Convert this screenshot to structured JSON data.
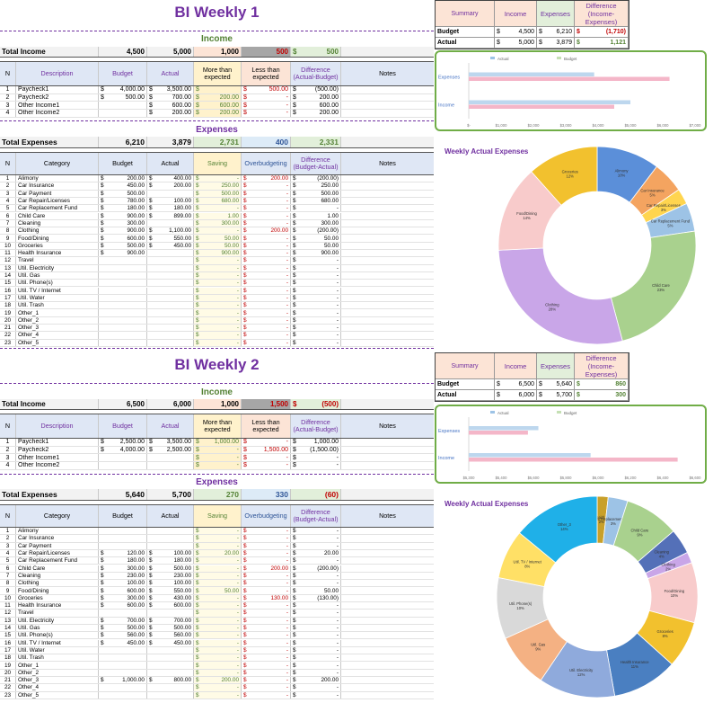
{
  "colors": {
    "purple": "#7030a0",
    "green": "#548235",
    "red": "#c00000",
    "blue": "#2f5597"
  },
  "w1": {
    "title": "BI Weekly 1",
    "income_band": "Income",
    "income_total": {
      "label": "Total Income",
      "budget": "4,500",
      "actual": "5,000",
      "more": "1,000",
      "less": "500",
      "diff_cur": "$",
      "diff": "500"
    },
    "income_headers": [
      "N",
      "Description",
      "Budget",
      "Actual",
      "More than expected",
      "Less than expected",
      "Difference (Actual-Budget)",
      "Notes"
    ],
    "income_rows": [
      {
        "n": "1",
        "desc": "Paycheck1",
        "budget": "4,000.00",
        "actual": "3,500.00",
        "more": "",
        "less": "500.00",
        "diff": "(500.00)"
      },
      {
        "n": "2",
        "desc": "Paycheck2",
        "budget": "500.00",
        "actual": "700.00",
        "more": "200.00",
        "less": "-",
        "diff": "200.00"
      },
      {
        "n": "3",
        "desc": "Other Income1",
        "budget": "",
        "actual": "600.00",
        "more": "600.00",
        "less": "-",
        "diff": "600.00"
      },
      {
        "n": "4",
        "desc": "Other Income2",
        "budget": "",
        "actual": "200.00",
        "more": "200.00",
        "less": "-",
        "diff": "200.00"
      }
    ],
    "exp_band": "Expenses",
    "exp_total": {
      "label": "Total Expenses",
      "budget": "6,210",
      "actual": "3,879",
      "saving": "2,731",
      "over": "400",
      "diff": "2,331"
    },
    "exp_headers": [
      "N",
      "Category",
      "Budget",
      "Actual",
      "Saving",
      "Overbudgeting",
      "Difference (Budget-Actual)",
      "Notes"
    ],
    "exp_rows": [
      {
        "n": "1",
        "cat": "Alimony",
        "budget": "200.00",
        "actual": "400.00",
        "saving": "-",
        "over": "200.00",
        "diff": "(200.00)"
      },
      {
        "n": "2",
        "cat": "Car Insurance",
        "budget": "450.00",
        "actual": "200.00",
        "saving": "250.00",
        "over": "-",
        "diff": "250.00"
      },
      {
        "n": "3",
        "cat": "Car Payment",
        "budget": "500.00",
        "actual": "",
        "saving": "500.00",
        "over": "-",
        "diff": "500.00"
      },
      {
        "n": "4",
        "cat": "Car Repair/Licenses",
        "budget": "780.00",
        "actual": "100.00",
        "saving": "680.00",
        "over": "-",
        "diff": "680.00"
      },
      {
        "n": "5",
        "cat": "Car Replacement Fund",
        "budget": "180.00",
        "actual": "180.00",
        "saving": "-",
        "over": "-",
        "diff": "-"
      },
      {
        "n": "6",
        "cat": "Child Care",
        "budget": "900.00",
        "actual": "899.00",
        "saving": "1.00",
        "over": "-",
        "diff": "1.00"
      },
      {
        "n": "7",
        "cat": "Cleaning",
        "budget": "300.00",
        "actual": "",
        "saving": "300.00",
        "over": "-",
        "diff": "300.00"
      },
      {
        "n": "8",
        "cat": "Clothing",
        "budget": "900.00",
        "actual": "1,100.00",
        "saving": "-",
        "over": "200.00",
        "diff": "(200.00)"
      },
      {
        "n": "9",
        "cat": "Food/Dining",
        "budget": "600.00",
        "actual": "550.00",
        "saving": "50.00",
        "over": "-",
        "diff": "50.00"
      },
      {
        "n": "10",
        "cat": "Groceries",
        "budget": "500.00",
        "actual": "450.00",
        "saving": "50.00",
        "over": "-",
        "diff": "50.00"
      },
      {
        "n": "11",
        "cat": "Health Insurance",
        "budget": "900.00",
        "actual": "",
        "saving": "900.00",
        "over": "-",
        "diff": "900.00"
      },
      {
        "n": "12",
        "cat": "Travel",
        "budget": "",
        "actual": "",
        "saving": "-",
        "over": "-",
        "diff": "-"
      },
      {
        "n": "13",
        "cat": "Util. Electricity",
        "budget": "",
        "actual": "",
        "saving": "-",
        "over": "-",
        "diff": "-"
      },
      {
        "n": "14",
        "cat": "Util. Gas",
        "budget": "",
        "actual": "",
        "saving": "-",
        "over": "-",
        "diff": "-"
      },
      {
        "n": "15",
        "cat": "Util. Phone(s)",
        "budget": "",
        "actual": "",
        "saving": "-",
        "over": "-",
        "diff": "-"
      },
      {
        "n": "16",
        "cat": "Util. TV / Internet",
        "budget": "",
        "actual": "",
        "saving": "-",
        "over": "-",
        "diff": "-"
      },
      {
        "n": "17",
        "cat": "Util. Water",
        "budget": "",
        "actual": "",
        "saving": "-",
        "over": "-",
        "diff": "-"
      },
      {
        "n": "18",
        "cat": "Util. Trash",
        "budget": "",
        "actual": "",
        "saving": "-",
        "over": "-",
        "diff": "-"
      },
      {
        "n": "19",
        "cat": "Other_1",
        "budget": "",
        "actual": "",
        "saving": "-",
        "over": "-",
        "diff": "-"
      },
      {
        "n": "20",
        "cat": "Other_2",
        "budget": "",
        "actual": "",
        "saving": "-",
        "over": "-",
        "diff": "-"
      },
      {
        "n": "21",
        "cat": "Other_3",
        "budget": "",
        "actual": "",
        "saving": "-",
        "over": "-",
        "diff": "-"
      },
      {
        "n": "22",
        "cat": "Other_4",
        "budget": "",
        "actual": "",
        "saving": "-",
        "over": "-",
        "diff": "-"
      },
      {
        "n": "23",
        "cat": "Other_5",
        "budget": "",
        "actual": "",
        "saving": "-",
        "over": "-",
        "diff": "-"
      }
    ],
    "summary": {
      "headers": [
        "Summary",
        "Income",
        "Expenses",
        "Difference (Income-Expenses)"
      ],
      "rows": [
        {
          "label": "Budget",
          "income": "4,500",
          "expenses": "6,210",
          "diff": "(1,710)",
          "neg": true
        },
        {
          "label": "Actual",
          "income": "5,000",
          "expenses": "3,879",
          "diff": "1,121",
          "neg": false
        }
      ]
    },
    "bar_chart": {
      "type": "bar",
      "legend": [
        "Actual",
        "Budget"
      ],
      "categories": [
        "Expenses",
        "Income"
      ],
      "series": [
        {
          "name": "Actual",
          "values": [
            3879,
            5000
          ]
        },
        {
          "name": "Budget",
          "values": [
            6210,
            4500
          ]
        }
      ],
      "xticks": [
        "$-",
        "$1,000",
        "$2,000",
        "$3,000",
        "$4,000",
        "$5,000",
        "$6,000",
        "$7,000"
      ],
      "xlim": [
        0,
        7000
      ]
    },
    "donut": {
      "type": "pie",
      "title": "Weekly Actual Expenses",
      "slices": [
        {
          "label": "Alimony",
          "pct": "10%",
          "value": 400,
          "color": "#5b8fd9"
        },
        {
          "label": "Car Insurance",
          "pct": "5%",
          "value": 200,
          "color": "#f4a460"
        },
        {
          "label": "Car Repair/Licenses",
          "pct": "3%",
          "value": 100,
          "color": "#ffd54f"
        },
        {
          "label": "Car Replacement Fund",
          "pct": "5%",
          "value": 180,
          "color": "#9dc3e6"
        },
        {
          "label": "Child Care",
          "pct": "23%",
          "value": 899,
          "color": "#a9d18e"
        },
        {
          "label": "Clothing",
          "pct": "28%",
          "value": 1100,
          "color": "#c9a6e8"
        },
        {
          "label": "Food/Dining",
          "pct": "14%",
          "value": 550,
          "color": "#f8cbcb"
        },
        {
          "label": "Groceries",
          "pct": "12%",
          "value": 450,
          "color": "#f2c12e"
        }
      ]
    }
  },
  "w2": {
    "title": "BI Weekly 2",
    "income_band": "Income",
    "income_total": {
      "label": "Total Income",
      "budget": "6,500",
      "actual": "6,000",
      "more": "1,000",
      "less": "1,500",
      "diff_cur": "$",
      "diff": "(500)"
    },
    "income_headers": [
      "N",
      "Description",
      "Budget",
      "Actual",
      "More than expected",
      "Less than expected",
      "Difference (Actual-Budget)",
      "Notes"
    ],
    "income_rows": [
      {
        "n": "1",
        "desc": "Paycheck1",
        "budget": "2,500.00",
        "actual": "3,500.00",
        "more": "1,000.00",
        "less": "-",
        "diff": "1,000.00"
      },
      {
        "n": "2",
        "desc": "Paycheck2",
        "budget": "4,000.00",
        "actual": "2,500.00",
        "more": "-",
        "less": "1,500.00",
        "diff": "(1,500.00)"
      },
      {
        "n": "3",
        "desc": "Other Income1",
        "budget": "",
        "actual": "",
        "more": "-",
        "less": "-",
        "diff": "-"
      },
      {
        "n": "4",
        "desc": "Other Income2",
        "budget": "",
        "actual": "",
        "more": "-",
        "less": "-",
        "diff": "-"
      }
    ],
    "exp_band": "Expenses",
    "exp_total": {
      "label": "Total Expenses",
      "budget": "5,640",
      "actual": "5,700",
      "saving": "270",
      "over": "330",
      "diff": "(60)"
    },
    "exp_headers": [
      "N",
      "Category",
      "Budget",
      "Actual",
      "Saving",
      "Overbudgeting",
      "Difference (Budget-Actual)",
      "Notes"
    ],
    "exp_rows": [
      {
        "n": "1",
        "cat": "Alimony",
        "budget": "",
        "actual": "",
        "saving": "-",
        "over": "-",
        "diff": "-"
      },
      {
        "n": "2",
        "cat": "Car Insurance",
        "budget": "",
        "actual": "",
        "saving": "-",
        "over": "-",
        "diff": "-"
      },
      {
        "n": "3",
        "cat": "Car Payment",
        "budget": "",
        "actual": "",
        "saving": "-",
        "over": "-",
        "diff": "-"
      },
      {
        "n": "4",
        "cat": "Car Repair/Licenses",
        "budget": "120.00",
        "actual": "100.00",
        "saving": "20.00",
        "over": "-",
        "diff": "20.00"
      },
      {
        "n": "5",
        "cat": "Car Replacement Fund",
        "budget": "180.00",
        "actual": "180.00",
        "saving": "-",
        "over": "-",
        "diff": "-"
      },
      {
        "n": "6",
        "cat": "Child Care",
        "budget": "300.00",
        "actual": "500.00",
        "saving": "-",
        "over": "200.00",
        "diff": "(200.00)"
      },
      {
        "n": "7",
        "cat": "Cleaning",
        "budget": "230.00",
        "actual": "230.00",
        "saving": "-",
        "over": "-",
        "diff": "-"
      },
      {
        "n": "8",
        "cat": "Clothing",
        "budget": "100.00",
        "actual": "100.00",
        "saving": "-",
        "over": "-",
        "diff": "-"
      },
      {
        "n": "9",
        "cat": "Food/Dining",
        "budget": "600.00",
        "actual": "550.00",
        "saving": "50.00",
        "over": "-",
        "diff": "50.00"
      },
      {
        "n": "10",
        "cat": "Groceries",
        "budget": "300.00",
        "actual": "430.00",
        "saving": "-",
        "over": "130.00",
        "diff": "(130.00)"
      },
      {
        "n": "11",
        "cat": "Health Insurance",
        "budget": "600.00",
        "actual": "600.00",
        "saving": "-",
        "over": "-",
        "diff": "-"
      },
      {
        "n": "12",
        "cat": "Travel",
        "budget": "",
        "actual": "",
        "saving": "-",
        "over": "-",
        "diff": "-"
      },
      {
        "n": "13",
        "cat": "Util. Electricity",
        "budget": "700.00",
        "actual": "700.00",
        "saving": "-",
        "over": "-",
        "diff": "-"
      },
      {
        "n": "14",
        "cat": "Util. Gas",
        "budget": "500.00",
        "actual": "500.00",
        "saving": "-",
        "over": "-",
        "diff": "-"
      },
      {
        "n": "15",
        "cat": "Util. Phone(s)",
        "budget": "560.00",
        "actual": "560.00",
        "saving": "-",
        "over": "-",
        "diff": "-"
      },
      {
        "n": "16",
        "cat": "Util. TV / Internet",
        "budget": "450.00",
        "actual": "450.00",
        "saving": "-",
        "over": "-",
        "diff": "-"
      },
      {
        "n": "17",
        "cat": "Util. Water",
        "budget": "",
        "actual": "",
        "saving": "-",
        "over": "-",
        "diff": "-"
      },
      {
        "n": "18",
        "cat": "Util. Trash",
        "budget": "",
        "actual": "",
        "saving": "-",
        "over": "-",
        "diff": "-"
      },
      {
        "n": "19",
        "cat": "Other_1",
        "budget": "",
        "actual": "",
        "saving": "-",
        "over": "-",
        "diff": "-"
      },
      {
        "n": "20",
        "cat": "Other_2",
        "budget": "",
        "actual": "",
        "saving": "-",
        "over": "-",
        "diff": "-"
      },
      {
        "n": "21",
        "cat": "Other_3",
        "budget": "1,000.00",
        "actual": "800.00",
        "saving": "200.00",
        "over": "-",
        "diff": "200.00"
      },
      {
        "n": "22",
        "cat": "Other_4",
        "budget": "",
        "actual": "",
        "saving": "-",
        "over": "-",
        "diff": "-"
      },
      {
        "n": "23",
        "cat": "Other_5",
        "budget": "",
        "actual": "",
        "saving": "-",
        "over": "-",
        "diff": "-"
      }
    ],
    "summary": {
      "headers": [
        "Summary",
        "Income",
        "Expenses",
        "Difference (Income-Expenses)"
      ],
      "rows": [
        {
          "label": "Budget",
          "income": "6,500",
          "expenses": "5,640",
          "diff": "860",
          "neg": false
        },
        {
          "label": "Actual",
          "income": "6,000",
          "expenses": "5,700",
          "diff": "300",
          "neg": false
        }
      ]
    },
    "bar_chart": {
      "type": "bar",
      "legend": [
        "Actual",
        "Budget"
      ],
      "categories": [
        "Expenses",
        "Income"
      ],
      "series": [
        {
          "name": "Actual",
          "values": [
            5700,
            6000
          ]
        },
        {
          "name": "Budget",
          "values": [
            5640,
            6500
          ]
        }
      ],
      "xticks": [
        "$5,300",
        "$5,400",
        "$5,600",
        "$5,800",
        "$6,000",
        "$6,200",
        "$6,400",
        "$6,600"
      ],
      "xlim": [
        5300,
        6600
      ]
    },
    "donut": {
      "type": "pie",
      "title": "Weekly Actual Expenses",
      "slices": [
        {
          "label": "Car Repair/Licenses",
          "pct": "2%",
          "value": 100,
          "color": "#c8a02a"
        },
        {
          "label": "Car Replacement Fund",
          "pct": "3%",
          "value": 180,
          "color": "#9dc3e6"
        },
        {
          "label": "Child Care",
          "pct": "9%",
          "value": 500,
          "color": "#a9d18e"
        },
        {
          "label": "Cleaning",
          "pct": "4%",
          "value": 230,
          "color": "#5470b8"
        },
        {
          "label": "Clothing",
          "pct": "2%",
          "value": 100,
          "color": "#c9a6e8"
        },
        {
          "label": "Food/Dining",
          "pct": "10%",
          "value": 550,
          "color": "#f8cbcb"
        },
        {
          "label": "Groceries",
          "pct": "8%",
          "value": 430,
          "color": "#f2c12e"
        },
        {
          "label": "Health Insurance",
          "pct": "11%",
          "value": 600,
          "color": "#4a7fc1"
        },
        {
          "label": "Util. Electricity",
          "pct": "12%",
          "value": 700,
          "color": "#8faadc"
        },
        {
          "label": "Util. Gas",
          "pct": "9%",
          "value": 500,
          "color": "#f4b183"
        },
        {
          "label": "Util. Phone(s)",
          "pct": "10%",
          "value": 560,
          "color": "#d9d9d9"
        },
        {
          "label": "Util. TV / Internet",
          "pct": "8%",
          "value": 450,
          "color": "#ffe066"
        },
        {
          "label": "Other_3",
          "pct": "14%",
          "value": 800,
          "color": "#1fb0e8"
        }
      ]
    }
  }
}
